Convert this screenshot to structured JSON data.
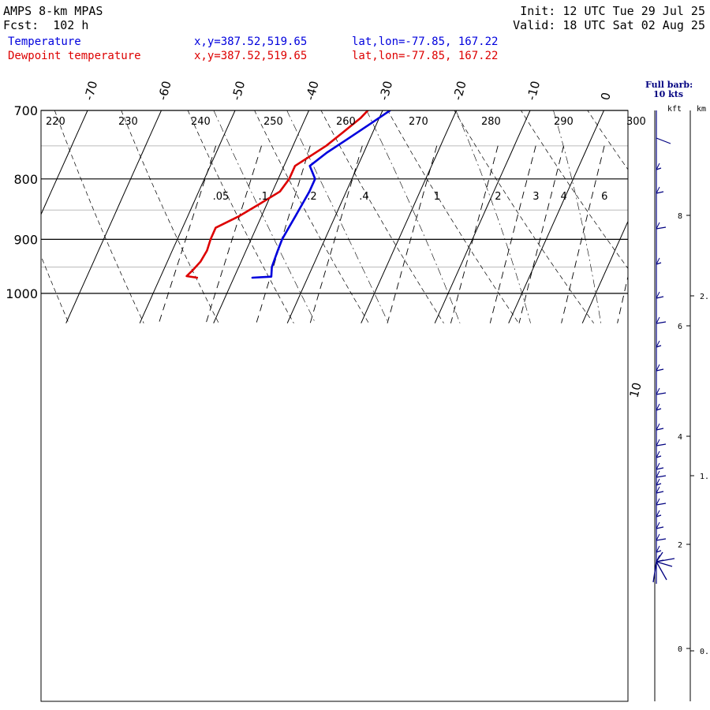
{
  "header": {
    "model": "AMPS 8-km MPAS",
    "forecast": "Fcst:  102 h",
    "init": "Init: 12 UTC Tue 29 Jul 25",
    "valid": "Valid: 18 UTC Sat 02 Aug 25"
  },
  "legend": {
    "temperature_label": "Temperature",
    "dewpoint_label": "Dewpoint temperature",
    "temperature_xy": "x,y=387.52,519.65",
    "dewpoint_xy": "x,y=387.52,519.65",
    "temperature_latlon": "lat,lon=-77.85, 167.22",
    "dewpoint_latlon": "lat,lon=-77.85, 167.22"
  },
  "barb_legend": {
    "line1": "Full barb:",
    "line2": "10 kts",
    "kft": "kft",
    "km": "km"
  },
  "colors": {
    "temperature": "#0000dd",
    "dewpoint": "#dd0000",
    "legend_text": "#0000cc",
    "barb_text": "#000080"
  },
  "chart_data": {
    "type": "line",
    "diagram": "skew-T log-p",
    "pressure_ticks": [
      "700",
      "800",
      "900",
      "1000"
    ],
    "pressure_range_hpa": [
      700,
      1050
    ],
    "isotherm_labels": [
      "-70",
      "-60",
      "-50",
      "-40",
      "-30",
      "-20",
      "-10",
      "0",
      "10"
    ],
    "dry_adiabat_labels": [
      "220",
      "230",
      "240",
      "250",
      "260",
      "270",
      "280",
      "290",
      "300"
    ],
    "mixing_ratio_labels": [
      ".05",
      ".1",
      ".2",
      ".4",
      "1",
      "2",
      "3",
      "4",
      "6"
    ],
    "height_kft_labels": [
      "8",
      "6",
      "4",
      "2",
      "0"
    ],
    "height_km_labels": [
      "2.",
      "1.",
      "0."
    ],
    "series": [
      {
        "name": "Temperature",
        "color": "#0000dd",
        "pressure_hpa": [
          700,
          710,
          720,
          740,
          760,
          780,
          800,
          820,
          840,
          860,
          880,
          900,
          920,
          950,
          968,
          970
        ],
        "temperature_c": [
          -29,
          -30,
          -31,
          -33,
          -35,
          -36.5,
          -35,
          -35,
          -35.2,
          -35.4,
          -35.6,
          -35.8,
          -35.7,
          -35.5,
          -35,
          -37.5
        ]
      },
      {
        "name": "Dewpoint temperature",
        "color": "#dd0000",
        "pressure_hpa": [
          700,
          710,
          730,
          750,
          780,
          800,
          820,
          840,
          860,
          880,
          900,
          920,
          940,
          955,
          967,
          970
        ],
        "temperature_c": [
          -32,
          -32.5,
          -34,
          -35.5,
          -38.5,
          -38.5,
          -39,
          -41,
          -43,
          -45.5,
          -45.5,
          -45.3,
          -45.5,
          -46,
          -46.5,
          -45
        ]
      }
    ]
  }
}
